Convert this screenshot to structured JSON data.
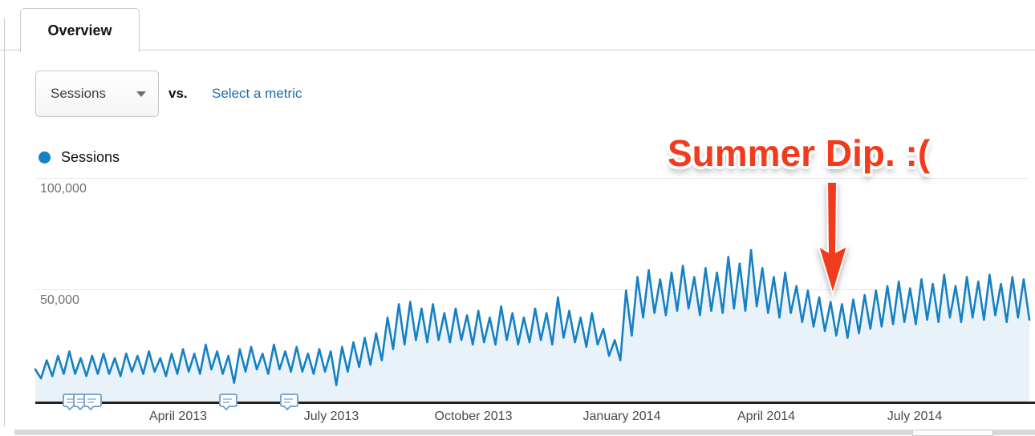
{
  "tab": {
    "label": "Overview"
  },
  "controls": {
    "metric_selector_value": "Sessions",
    "vs_label": "vs.",
    "select_metric_label": "Select a metric",
    "link_color": "#1a6cb4"
  },
  "legend": {
    "label": "Sessions",
    "dot_color": "#1580c4"
  },
  "annotation": {
    "text": "Summer Dip. :(",
    "color": "#f23b1d"
  },
  "axis_markers": {
    "description": "annotation speech-bubble markers on x-axis",
    "count": 5
  },
  "chart_data": {
    "type": "area",
    "title": "",
    "series": [
      {
        "name": "Sessions",
        "values": [
          15000,
          11000,
          19000,
          12000,
          21000,
          13000,
          23000,
          13000,
          20000,
          12000,
          21000,
          13000,
          22000,
          13000,
          20000,
          12000,
          22000,
          14000,
          21000,
          13000,
          23000,
          14000,
          20000,
          12000,
          22000,
          13000,
          24000,
          14000,
          22000,
          13000,
          26000,
          15000,
          23000,
          13000,
          21000,
          9000,
          24000,
          14000,
          25000,
          15000,
          22000,
          13000,
          26000,
          15000,
          23000,
          14000,
          25000,
          14000,
          22000,
          13000,
          24000,
          14000,
          23000,
          8000,
          25000,
          14000,
          27000,
          16000,
          29000,
          17000,
          31000,
          19000,
          38000,
          24000,
          44000,
          26000,
          45000,
          28000,
          42000,
          27000,
          44000,
          28000,
          40000,
          27000,
          42000,
          28000,
          39000,
          26000,
          41000,
          27000,
          38000,
          26000,
          43000,
          28000,
          40000,
          26000,
          38000,
          27000,
          42000,
          28000,
          40000,
          26000,
          47000,
          29000,
          41000,
          27000,
          38000,
          25000,
          40000,
          26000,
          33000,
          21000,
          28000,
          19000,
          50000,
          30000,
          56000,
          38000,
          59000,
          40000,
          55000,
          39000,
          58000,
          41000,
          61000,
          42000,
          56000,
          39000,
          60000,
          41000,
          58000,
          40000,
          65000,
          42000,
          62000,
          41000,
          68000,
          43000,
          60000,
          40000,
          56000,
          38000,
          58000,
          40000,
          52000,
          36000,
          50000,
          34000,
          47000,
          32000,
          45000,
          30000,
          44000,
          29000,
          46000,
          31000,
          48000,
          33000,
          50000,
          34000,
          52000,
          35000,
          54000,
          36000,
          51000,
          35000,
          55000,
          37000,
          53000,
          36000,
          57000,
          38000,
          52000,
          36000,
          56000,
          38000,
          54000,
          37000,
          57000,
          39000,
          53000,
          36000,
          56000,
          38000,
          55000,
          37000
        ]
      }
    ],
    "x_tick_labels": [
      "April 2013",
      "July 2013",
      "October 2013",
      "January 2014",
      "April 2014",
      "July 2014"
    ],
    "y_tick_labels": [
      "100,000",
      "50,000"
    ],
    "y_gridlines": [
      100000,
      50000
    ],
    "ylim": [
      0,
      100000
    ],
    "x_range_note": "daily sessions, approx mid-Jan 2013 through mid-Sep 2014; values alternate weekly high/low",
    "line_color": "#1580c4",
    "fill_color": "#e9f2f9",
    "grid": true,
    "legend_position": "top-left"
  }
}
